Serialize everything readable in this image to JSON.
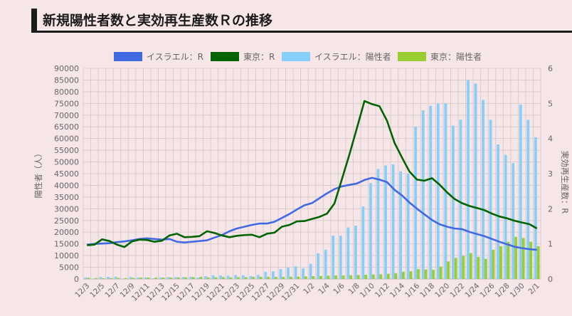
{
  "page": {
    "title": "新規陽性者数と実効再生産数Ｒの推移"
  },
  "colors": {
    "israel_r": "#4169e1",
    "tokyo_r": "#006400",
    "israel_cases": "#87cefa",
    "tokyo_cases": "#9acd32",
    "background": "#f6e6e7",
    "grid": "#d9cccd",
    "text": "#666666"
  },
  "chart_data": {
    "type": "bar",
    "title": "新規陽性者数と実効再生産数Ｒの推移",
    "ylabel_left": "陽性者（人）",
    "ylabel_right": "実効再生産数：R",
    "ylim_left": [
      0,
      90000
    ],
    "ylim_right": [
      0,
      6
    ],
    "yticks_left": [
      "0",
      "5000",
      "10000",
      "15000",
      "20000",
      "25000",
      "30000",
      "35000",
      "40000",
      "45000",
      "50000",
      "55000",
      "60000",
      "65000",
      "70000",
      "75000",
      "80000",
      "85000",
      "90000"
    ],
    "yticks_right": [
      "0",
      "1",
      "2",
      "3",
      "4",
      "5",
      "6"
    ],
    "grid": true,
    "legend_position": "top",
    "categories": [
      "12/3",
      "12/4",
      "12/5",
      "12/6",
      "12/7",
      "12/8",
      "12/9",
      "12/10",
      "12/11",
      "12/12",
      "12/13",
      "12/14",
      "12/15",
      "12/16",
      "12/17",
      "12/18",
      "12/19",
      "12/20",
      "12/21",
      "12/22",
      "12/23",
      "12/24",
      "12/25",
      "12/26",
      "12/27",
      "12/28",
      "12/29",
      "12/30",
      "12/31",
      "1/1",
      "1/2",
      "1/3",
      "1/4",
      "1/5",
      "1/6",
      "1/7",
      "1/8",
      "1/9",
      "1/10",
      "1/11",
      "1/12",
      "1/13",
      "1/14",
      "1/15",
      "1/16",
      "1/17",
      "1/18",
      "1/19",
      "1/20",
      "1/21",
      "1/22",
      "1/23",
      "1/24",
      "1/25",
      "1/26",
      "1/27",
      "1/28",
      "1/29",
      "1/30",
      "1/31",
      "2/1"
    ],
    "tick_labels": [
      "12/3",
      "12/5",
      "12/7",
      "12/9",
      "12/11",
      "12/13",
      "12/15",
      "12/17",
      "12/19",
      "12/21",
      "12/23",
      "12/25",
      "12/27",
      "12/29",
      "12/31",
      "1/2",
      "1/4",
      "1/6",
      "1/8",
      "1/10",
      "1/12",
      "1/14",
      "1/16",
      "1/18",
      "1/20",
      "1/22",
      "1/24",
      "1/26",
      "1/28",
      "1/30",
      "2/1"
    ],
    "series": [
      {
        "name": "イスラエル：R",
        "kind": "line",
        "axis": "right",
        "color": "#4169e1",
        "values": [
          0.98,
          1.0,
          1.01,
          1.02,
          1.05,
          1.07,
          1.1,
          1.14,
          1.16,
          1.14,
          1.12,
          1.14,
          1.06,
          1.04,
          1.06,
          1.08,
          1.1,
          1.18,
          1.25,
          1.36,
          1.44,
          1.49,
          1.54,
          1.58,
          1.58,
          1.63,
          1.74,
          1.85,
          1.98,
          2.1,
          2.16,
          2.3,
          2.44,
          2.56,
          2.64,
          2.68,
          2.72,
          2.82,
          2.88,
          2.83,
          2.76,
          2.54,
          2.38,
          2.18,
          2.0,
          1.84,
          1.68,
          1.56,
          1.49,
          1.44,
          1.42,
          1.34,
          1.28,
          1.22,
          1.14,
          1.06,
          0.99,
          0.92,
          0.88,
          0.85,
          0.83
        ]
      },
      {
        "name": "東京：R",
        "kind": "line",
        "axis": "right",
        "color": "#006400",
        "values": [
          0.96,
          0.98,
          1.13,
          1.08,
          0.98,
          0.91,
          1.07,
          1.12,
          1.11,
          1.06,
          1.09,
          1.24,
          1.29,
          1.19,
          1.2,
          1.22,
          1.36,
          1.31,
          1.24,
          1.19,
          1.23,
          1.25,
          1.26,
          1.19,
          1.29,
          1.32,
          1.49,
          1.54,
          1.64,
          1.65,
          1.71,
          1.77,
          1.86,
          2.15,
          2.85,
          3.55,
          4.3,
          5.07,
          4.98,
          4.92,
          4.51,
          3.88,
          3.46,
          3.06,
          2.83,
          2.8,
          2.87,
          2.69,
          2.47,
          2.28,
          2.16,
          2.08,
          2.02,
          1.96,
          1.86,
          1.78,
          1.73,
          1.66,
          1.61,
          1.56,
          1.44
        ]
      },
      {
        "name": "イスラエル：陽性者",
        "kind": "bar",
        "axis": "left",
        "color": "#87cefa",
        "values": [
          600,
          100,
          800,
          900,
          1000,
          200,
          800,
          600,
          700,
          300,
          700,
          800,
          800,
          800,
          900,
          600,
          1200,
          1600,
          1500,
          1400,
          1700,
          1600,
          1200,
          1700,
          3000,
          3300,
          4200,
          4800,
          5400,
          4500,
          6500,
          11000,
          12500,
          18500,
          18500,
          22000,
          22800,
          31000,
          41000,
          47000,
          48500,
          49000,
          46000,
          45000,
          65000,
          72000,
          74000,
          75000,
          75000,
          65500,
          68000,
          85000,
          83500,
          76500,
          68000,
          57500,
          53000,
          49500,
          74500,
          68000,
          60500
        ]
      },
      {
        "name": "東京：陽性者",
        "kind": "bar",
        "axis": "left",
        "color": "#9acd32",
        "values": [
          500,
          400,
          300,
          400,
          400,
          400,
          500,
          600,
          600,
          600,
          600,
          600,
          700,
          700,
          800,
          900,
          700,
          700,
          800,
          700,
          800,
          800,
          900,
          900,
          900,
          900,
          900,
          1000,
          1000,
          1100,
          1200,
          1300,
          1400,
          1500,
          1500,
          1600,
          1700,
          1800,
          1900,
          2000,
          2200,
          2500,
          3100,
          3300,
          4200,
          4100,
          3900,
          5300,
          7500,
          9000,
          9900,
          11100,
          9400,
          8600,
          12500,
          14000,
          15900,
          18000,
          17500,
          15900,
          14000
        ]
      }
    ]
  }
}
